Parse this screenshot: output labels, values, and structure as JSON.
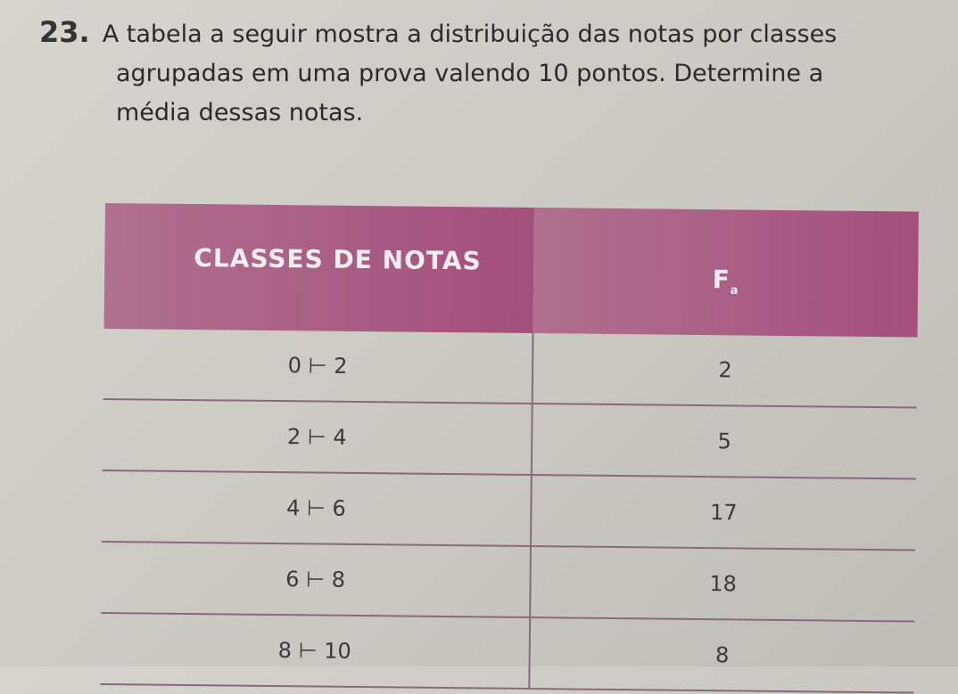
{
  "question": {
    "number": "23.",
    "lines": [
      "A tabela a seguir mostra a distribuição das notas por classes",
      "agrupadas em uma prova valendo 10 pontos. Determine a",
      "média dessas notas."
    ]
  },
  "table": {
    "headers": {
      "classes": "CLASSES DE NOTAS",
      "freq": "F",
      "freq_sub": "a"
    },
    "header_color": "#a8587f",
    "rows": [
      {
        "classe": "0 ⊢ 2",
        "freq": "2"
      },
      {
        "classe": "2 ⊢ 4",
        "freq": "5"
      },
      {
        "classe": "4 ⊢ 6",
        "freq": "17"
      },
      {
        "classe": "6 ⊢ 8",
        "freq": "18"
      },
      {
        "classe": "8 ⊢ 10",
        "freq": "8"
      }
    ]
  }
}
